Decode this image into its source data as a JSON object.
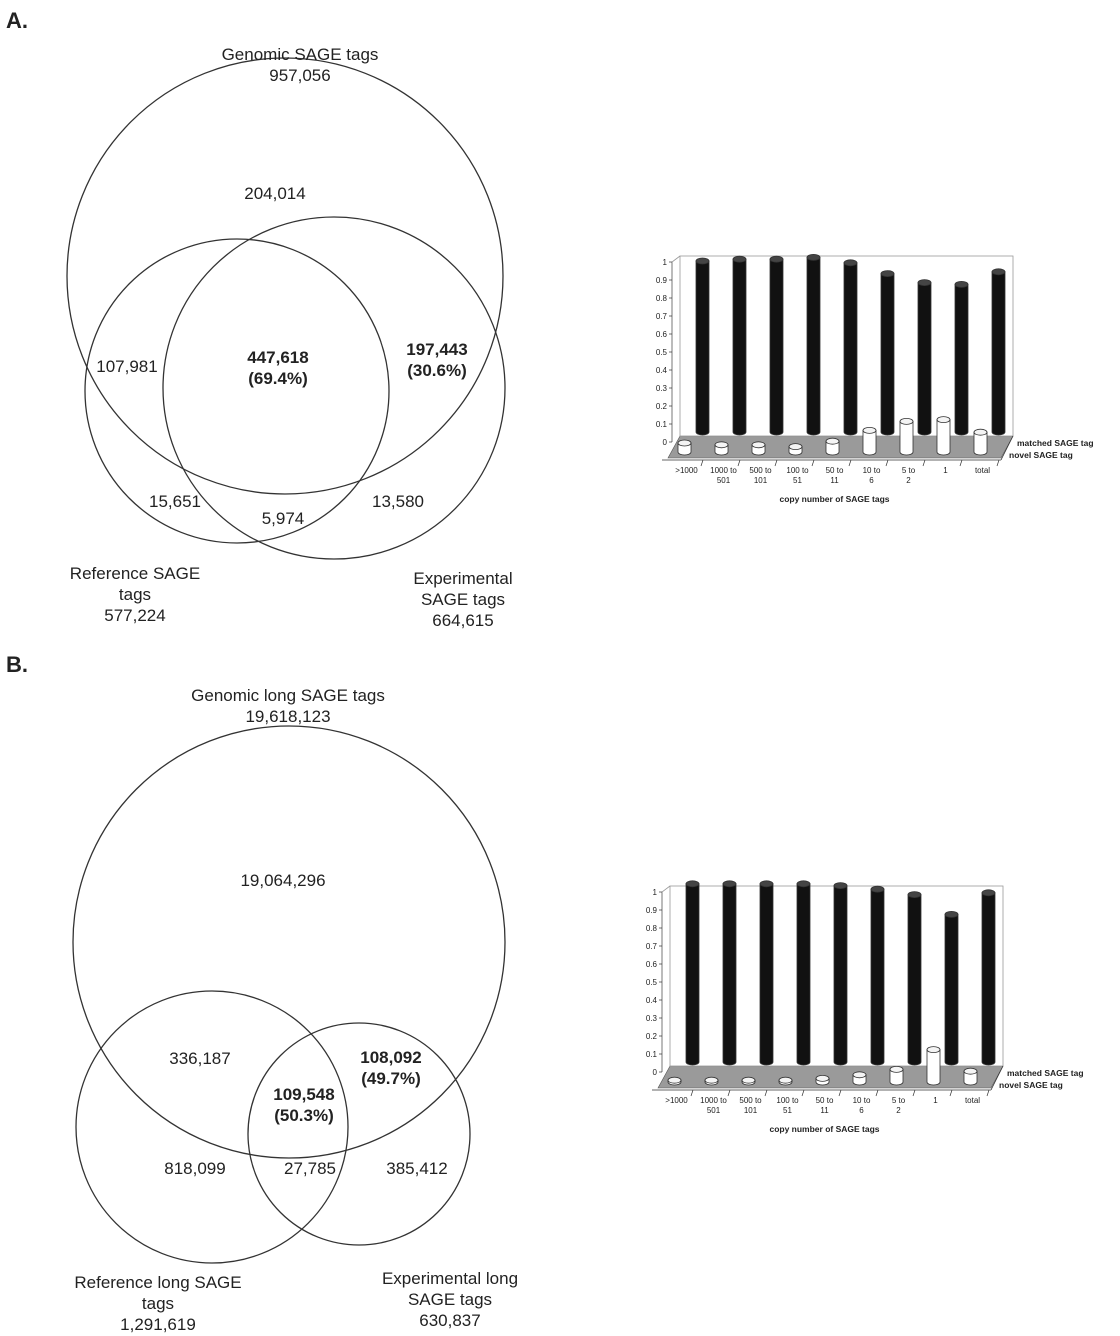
{
  "panelA": {
    "letter": "A.",
    "genomic": {
      "title": "Genomic SAGE tags",
      "count": "957,056"
    },
    "reference": {
      "title_l1": "Reference SAGE",
      "title_l2": "tags",
      "count": "577,224"
    },
    "experimental": {
      "title_l1": "Experimental",
      "title_l2": "SAGE tags",
      "count": "664,615"
    },
    "regions": {
      "genomic_only": "204,014",
      "ref_genomic": "107,981",
      "all_three_count": "447,618",
      "all_three_pct": "(69.4%)",
      "exp_genomic_count": "197,443",
      "exp_genomic_pct": "(30.6%)",
      "ref_only": "15,651",
      "ref_exp": "5,974",
      "exp_only": "13,580"
    }
  },
  "panelB": {
    "letter": "B.",
    "genomic": {
      "title": "Genomic long SAGE tags",
      "count": "19,618,123"
    },
    "reference": {
      "title_l1": "Reference long SAGE",
      "title_l2": "tags",
      "count": "1,291,619"
    },
    "experimental": {
      "title_l1": "Experimental long",
      "title_l2": "SAGE tags",
      "count": "630,837"
    },
    "regions": {
      "genomic_only": "19,064,296",
      "ref_genomic": "336,187",
      "all_three_count": "109,548",
      "all_three_pct": "(50.3%)",
      "exp_genomic_count": "108,092",
      "exp_genomic_pct": "(49.7%)",
      "ref_only": "818,099",
      "ref_exp": "27,785",
      "exp_only": "385,412"
    }
  },
  "colors": {
    "matched": "#111111",
    "novel": "#ffffff",
    "floor": "#9a9a9a"
  },
  "chart_data": [
    {
      "type": "bar",
      "categories": [
        ">1000",
        "1000 to 501",
        "500 to 101",
        "100 to 51",
        "50 to 11",
        "10 to 6",
        "5 to 2",
        "1",
        "total"
      ],
      "series": [
        {
          "name": "matched SAGE tag",
          "values": [
            0.95,
            0.96,
            0.96,
            0.97,
            0.94,
            0.88,
            0.83,
            0.82,
            0.89
          ]
        },
        {
          "name": "novel SAGE tag",
          "values": [
            0.05,
            0.04,
            0.04,
            0.03,
            0.06,
            0.12,
            0.17,
            0.18,
            0.11
          ]
        }
      ],
      "xlabel": "copy number of SAGE tags",
      "ylim": [
        0,
        1
      ],
      "yticks": [
        "0",
        "0.1",
        "0.2",
        "0.3",
        "0.4",
        "0.5",
        "0.6",
        "0.7",
        "0.8",
        "0.9",
        "1"
      ]
    },
    {
      "type": "bar",
      "categories": [
        ">1000",
        "1000 to 501",
        "500 to 101",
        "100 to 51",
        "50 to 11",
        "10 to 6",
        "5 to 2",
        "1",
        "total"
      ],
      "series": [
        {
          "name": "matched SAGE tag",
          "values": [
            0.99,
            0.99,
            0.99,
            0.99,
            0.98,
            0.96,
            0.93,
            0.82,
            0.94
          ]
        },
        {
          "name": "novel SAGE tag",
          "values": [
            0.01,
            0.01,
            0.01,
            0.01,
            0.02,
            0.04,
            0.07,
            0.18,
            0.06
          ]
        }
      ],
      "xlabel": "copy number of SAGE tags",
      "ylim": [
        0,
        1
      ],
      "yticks": [
        "0",
        "0.1",
        "0.2",
        "0.3",
        "0.4",
        "0.5",
        "0.6",
        "0.7",
        "0.8",
        "0.9",
        "1"
      ]
    }
  ]
}
